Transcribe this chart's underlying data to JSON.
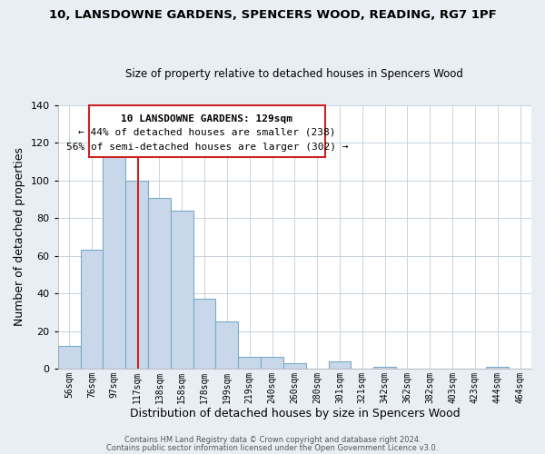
{
  "title": "10, LANSDOWNE GARDENS, SPENCERS WOOD, READING, RG7 1PF",
  "subtitle": "Size of property relative to detached houses in Spencers Wood",
  "xlabel": "Distribution of detached houses by size in Spencers Wood",
  "ylabel": "Number of detached properties",
  "bar_labels": [
    "56sqm",
    "76sqm",
    "97sqm",
    "117sqm",
    "138sqm",
    "158sqm",
    "178sqm",
    "199sqm",
    "219sqm",
    "240sqm",
    "260sqm",
    "280sqm",
    "301sqm",
    "321sqm",
    "342sqm",
    "362sqm",
    "382sqm",
    "403sqm",
    "423sqm",
    "444sqm",
    "464sqm"
  ],
  "bar_values": [
    12,
    63,
    113,
    100,
    91,
    84,
    37,
    25,
    6,
    6,
    3,
    0,
    4,
    0,
    1,
    0,
    0,
    0,
    0,
    1,
    0
  ],
  "bar_fill_color": "#c8d8ea",
  "bar_edge_color": "#7aaac8",
  "annotation_border_color": "#cc2222",
  "annotation_text_line1": "10 LANSDOWNE GARDENS: 129sqm",
  "annotation_text_line2": "← 44% of detached houses are smaller (238)",
  "annotation_text_line3": "56% of semi-detached houses are larger (302) →",
  "red_line_color": "#cc2222",
  "ylim": [
    0,
    140
  ],
  "yticks": [
    0,
    20,
    40,
    60,
    80,
    100,
    120,
    140
  ],
  "footer_line1": "Contains HM Land Registry data © Crown copyright and database right 2024.",
  "footer_line2": "Contains public sector information licensed under the Open Government Licence v3.0.",
  "background_color": "#e8eef4",
  "plot_background_color": "#ffffff",
  "grid_color": "#c8d4de"
}
